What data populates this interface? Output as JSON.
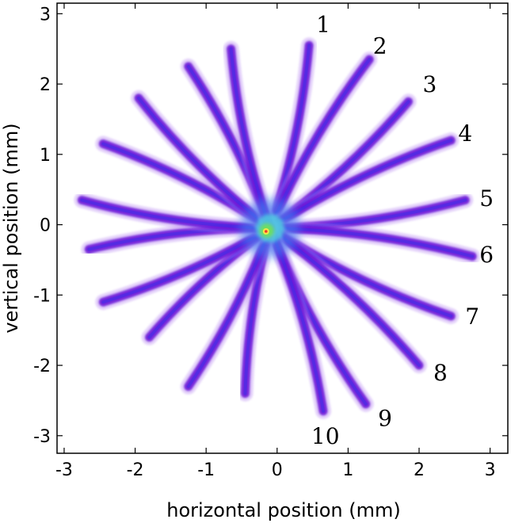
{
  "chart_data": {
    "type": "scatter",
    "title": "",
    "xlabel": "horizontal position (mm)",
    "ylabel": "vertical position (mm)",
    "xlim": [
      -3.1,
      3.25
    ],
    "ylim": [
      -3.25,
      3.15
    ],
    "xticks": [
      -3,
      -2,
      -1,
      0,
      1,
      2,
      3
    ],
    "yticks": [
      -3,
      -2,
      -1,
      0,
      1,
      2,
      3
    ],
    "xtick_labels": [
      "-3",
      "-2",
      "-1",
      "0",
      "1",
      "2",
      "3"
    ],
    "ytick_labels": [
      "-3",
      "-2",
      "-1",
      "0",
      "1",
      "2",
      "3"
    ],
    "grid": false,
    "center": {
      "x": -0.1,
      "y": -0.05
    },
    "colors": {
      "ray": "#6a18d8",
      "ray_core": "#3a2be8",
      "ray_faint": "#b07cf0",
      "hub_blue": "#3f8ff2",
      "hub_cyan": "#4fd0e0",
      "hub_green": "#6ee05a",
      "hub_yellow": "#f3e54a",
      "hub_red": "#f03a2a"
    },
    "rays": [
      {
        "tip": [
          0.45,
          2.55
        ],
        "label": "1",
        "label_pos": [
          0.65,
          2.85
        ]
      },
      {
        "tip": [
          1.3,
          2.35
        ],
        "label": "2",
        "label_pos": [
          1.45,
          2.55
        ]
      },
      {
        "tip": [
          1.85,
          1.75
        ],
        "label": "3",
        "label_pos": [
          2.15,
          2.0
        ]
      },
      {
        "tip": [
          2.45,
          1.2
        ],
        "label": "4",
        "label_pos": [
          2.65,
          1.3
        ]
      },
      {
        "tip": [
          2.65,
          0.35
        ],
        "label": "5",
        "label_pos": [
          2.95,
          0.38
        ]
      },
      {
        "tip": [
          2.75,
          -0.45
        ],
        "label": "6",
        "label_pos": [
          2.95,
          -0.42
        ]
      },
      {
        "tip": [
          2.45,
          -1.3
        ],
        "label": "7",
        "label_pos": [
          2.75,
          -1.3
        ]
      },
      {
        "tip": [
          2.0,
          -2.0
        ],
        "label": "8",
        "label_pos": [
          2.3,
          -2.1
        ]
      },
      {
        "tip": [
          1.25,
          -2.55
        ],
        "label": "9",
        "label_pos": [
          1.52,
          -2.75
        ]
      },
      {
        "tip": [
          0.65,
          -2.65
        ],
        "label": "10",
        "label_pos": [
          0.68,
          -3.0
        ]
      },
      {
        "tip": [
          -0.45,
          -2.4
        ]
      },
      {
        "tip": [
          -1.25,
          -2.3
        ]
      },
      {
        "tip": [
          -1.8,
          -1.6
        ]
      },
      {
        "tip": [
          -2.45,
          -1.1
        ]
      },
      {
        "tip": [
          -2.65,
          -0.35
        ]
      },
      {
        "tip": [
          -2.75,
          0.35
        ]
      },
      {
        "tip": [
          -2.45,
          1.15
        ]
      },
      {
        "tip": [
          -1.95,
          1.8
        ]
      },
      {
        "tip": [
          -1.25,
          2.25
        ]
      },
      {
        "tip": [
          -0.65,
          2.5
        ]
      }
    ]
  }
}
